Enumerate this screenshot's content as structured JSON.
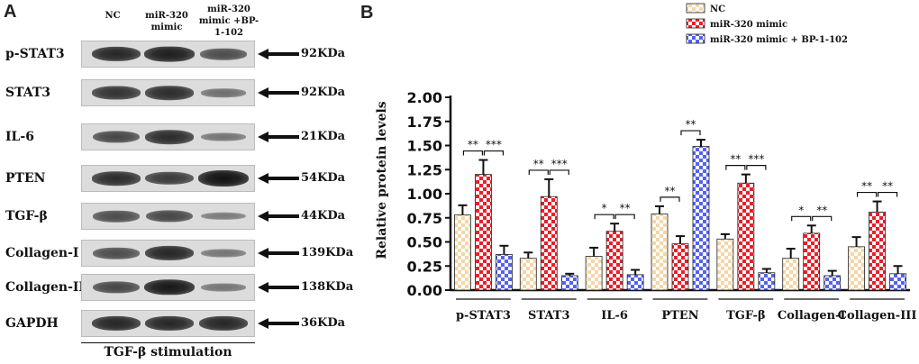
{
  "panel_a": {
    "letter": "A",
    "columns": [
      "NC",
      "miR-320 mimic",
      "miR-320 mimic +BP-1-102"
    ],
    "rows": [
      {
        "label": "p-STAT3",
        "kda": "92KDa",
        "bands": [
          0.85,
          0.9,
          0.55
        ]
      },
      {
        "label": "STAT3",
        "kda": "92KDa",
        "bands": [
          0.75,
          0.8,
          0.3
        ]
      },
      {
        "label": "IL-6",
        "kda": "21KDa",
        "bands": [
          0.6,
          0.8,
          0.25
        ]
      },
      {
        "label": "PTEN",
        "kda": "54KDa",
        "bands": [
          0.8,
          0.7,
          1.0
        ]
      },
      {
        "label": "TGF-β",
        "kda": "44KDa",
        "bands": [
          0.55,
          0.6,
          0.2
        ]
      },
      {
        "label": "Collagen-I",
        "kda": "139KDa",
        "bands": [
          0.55,
          0.85,
          0.25
        ]
      },
      {
        "label": "Collagen-III",
        "kda": "138KDa",
        "bands": [
          0.6,
          0.95,
          0.25
        ]
      },
      {
        "label": "GAPDH",
        "kda": "36KDa",
        "bands": [
          0.85,
          0.85,
          0.85
        ]
      }
    ],
    "stimulation_label": "TGF-β stimulation"
  },
  "chart_data": {
    "type": "bar",
    "panel_letter": "B",
    "title": "",
    "xlabel": "",
    "ylabel": "Relative protein levels",
    "ylim": [
      0,
      2.0
    ],
    "yticks": [
      "0.00",
      "0.25",
      "0.50",
      "0.75",
      "1.00",
      "1.25",
      "1.50",
      "1.75",
      "2.00"
    ],
    "categories": [
      "p-STAT3",
      "STAT3",
      "IL-6",
      "PTEN",
      "TGF-β",
      "Collagen-I",
      "Collagen-III"
    ],
    "series": [
      {
        "name": "NC",
        "color": "#f3d7a8",
        "pattern": "check",
        "values": [
          0.78,
          0.33,
          0.35,
          0.79,
          0.53,
          0.33,
          0.45
        ],
        "errors": [
          0.1,
          0.06,
          0.09,
          0.08,
          0.05,
          0.1,
          0.1
        ]
      },
      {
        "name": "miR-320 mimic",
        "color": "#e8202a",
        "pattern": "check",
        "values": [
          1.2,
          0.97,
          0.61,
          0.48,
          1.11,
          0.59,
          0.81
        ],
        "errors": [
          0.15,
          0.18,
          0.08,
          0.08,
          0.09,
          0.08,
          0.11
        ]
      },
      {
        "name": "miR-320 mimic + BP-1-102",
        "color": "#5562f0",
        "pattern": "check",
        "values": [
          0.37,
          0.15,
          0.16,
          1.49,
          0.18,
          0.15,
          0.17
        ],
        "errors": [
          0.09,
          0.02,
          0.05,
          0.07,
          0.04,
          0.05,
          0.08
        ]
      }
    ],
    "significance": [
      {
        "category": 0,
        "marks": [
          "**",
          "***"
        ]
      },
      {
        "category": 1,
        "marks": [
          "**",
          "***"
        ]
      },
      {
        "category": 2,
        "marks": [
          "*",
          "**"
        ]
      },
      {
        "category": 3,
        "marks": [
          "**",
          "**"
        ]
      },
      {
        "category": 4,
        "marks": [
          "**",
          "***"
        ]
      },
      {
        "category": 5,
        "marks": [
          "*",
          "**"
        ]
      },
      {
        "category": 6,
        "marks": [
          "**",
          "**"
        ]
      }
    ],
    "legend_position": "top-right"
  }
}
